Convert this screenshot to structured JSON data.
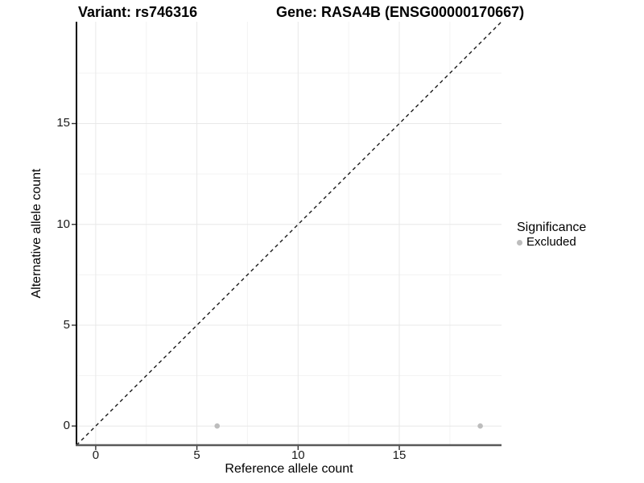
{
  "chart_data": {
    "type": "scatter",
    "titles": {
      "variant": "Variant: rs746316",
      "gene": "Gene: RASA4B (ENSG00000170667)"
    },
    "xlabel": "Reference allele count",
    "ylabel": "Alternative allele count",
    "xlim": [
      -0.95,
      20.05
    ],
    "ylim": [
      -0.95,
      20.05
    ],
    "xticks": [
      0,
      5,
      10,
      15
    ],
    "yticks": [
      0,
      5,
      10,
      15
    ],
    "x_minor_ticks": [
      2.5,
      7.5,
      12.5,
      17.5
    ],
    "y_minor_ticks": [
      2.5,
      7.5,
      12.5,
      17.5
    ],
    "grid": "major-and-minor",
    "series": [
      {
        "name": "Excluded",
        "color": "#bdbdbd",
        "point_radius": 3.3,
        "points": [
          [
            6,
            0
          ],
          [
            19,
            0
          ]
        ]
      }
    ],
    "identity_line": {
      "type": "y-equals-x",
      "style": "dashed",
      "color": "#1a1a1a"
    },
    "legend": {
      "position": "right",
      "title": "Significance",
      "items": [
        {
          "label": "Excluded",
          "color": "#bdbdbd"
        }
      ]
    },
    "colors": {
      "background": "#ffffff",
      "grid_major": "#e8e8e8",
      "grid_minor": "#f3f3f3",
      "axis_left": "#000000",
      "axis_bottom": "#595959",
      "tick_mark": "#333333",
      "text": "#000000"
    }
  }
}
